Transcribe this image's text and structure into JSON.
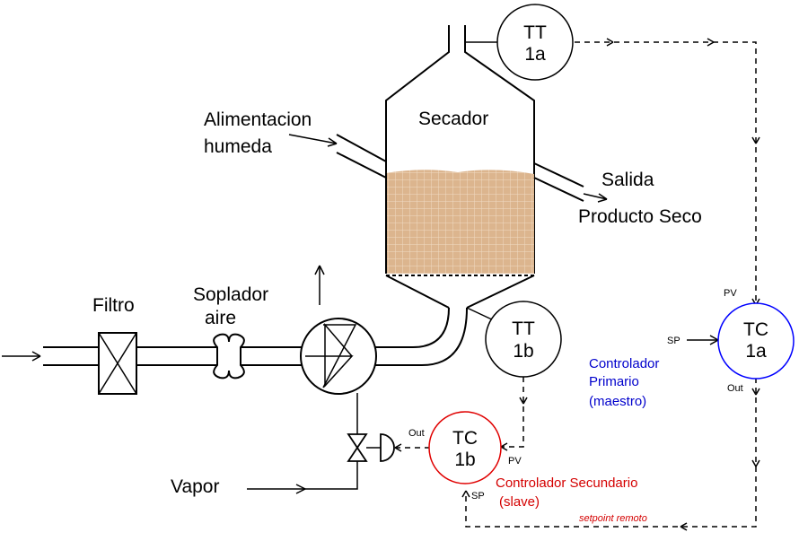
{
  "labels": {
    "secador": "Secador",
    "alimentacion_line1": "Alimentacion",
    "alimentacion_line2": "humeda",
    "salida_line1": "Salida",
    "salida_line2": "Producto Seco",
    "filtro": "Filtro",
    "soplador_line1": "Soplador",
    "soplador_line2": "aire",
    "vapor": "Vapor"
  },
  "instruments": {
    "tt1a": {
      "line1": "TT",
      "line2": "1a"
    },
    "tt1b": {
      "line1": "TT",
      "line2": "1b"
    },
    "tc1a": {
      "line1": "TC",
      "line2": "1a",
      "pv": "PV",
      "sp": "SP",
      "out": "Out"
    },
    "tc1b": {
      "line1": "TC",
      "line2": "1b",
      "pv": "PV",
      "sp": "SP",
      "out": "Out"
    }
  },
  "controllers": {
    "primary": {
      "line1": "Controlador",
      "line2": "Primario",
      "line3": "(maestro)",
      "color": "#0000cc"
    },
    "secondary": {
      "line1": "Controlador Secundario",
      "line2": "(slave)",
      "color": "#d40000"
    },
    "setpoint_remoto": "setpoint remoto"
  },
  "colors": {
    "product": "#d9b48c",
    "tc1a_circle": "#0000ff",
    "tc1b_circle": "#e00000"
  }
}
